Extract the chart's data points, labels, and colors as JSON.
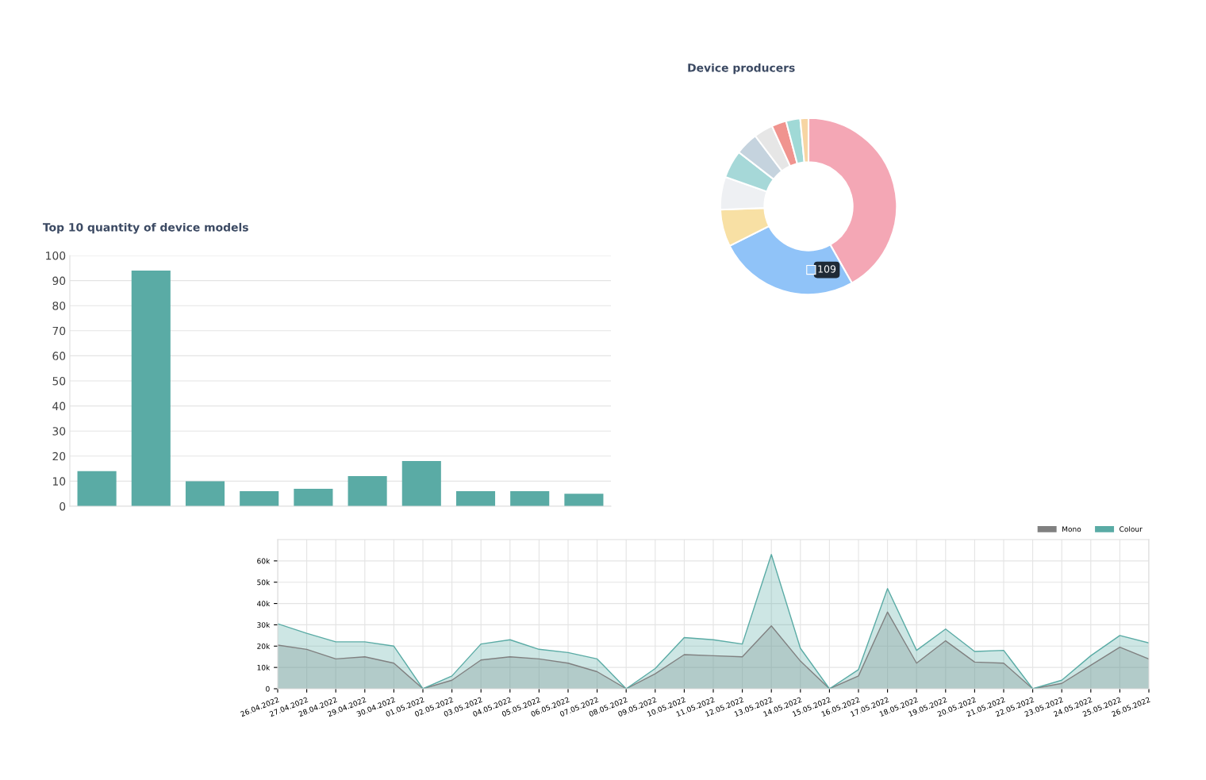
{
  "chart_data": [
    {
      "type": "donut",
      "title": "Device producers",
      "categories": [
        null,
        null,
        null,
        null,
        null,
        null,
        null,
        null,
        null,
        null
      ],
      "values": [
        41.8,
        25.8,
        6.8,
        6.0,
        5.1,
        4.2,
        3.5,
        2.7,
        2.6,
        1.5
      ],
      "colors": [
        "#f4a7b5",
        "#90c3f8",
        "#f8e0a4",
        "#eef0f3",
        "#a6d8d8",
        "#c5d3de",
        "#e6e6e6",
        "#f0948f",
        "#a0d9d6",
        "#f7d5a3"
      ],
      "annotations": [
        "109"
      ]
    },
    {
      "type": "bar",
      "title": "Top 10 quantity of device models",
      "categories": [
        null,
        null,
        null,
        null,
        null,
        null,
        null,
        null,
        null,
        null
      ],
      "values": [
        14,
        94,
        10,
        6,
        7,
        12,
        18,
        6,
        6,
        5
      ],
      "color": "#5aaba5",
      "ylim": [
        0,
        100
      ],
      "yticks": [
        0,
        10,
        20,
        30,
        40,
        50,
        60,
        70,
        80,
        90,
        100
      ],
      "grid": "y"
    },
    {
      "type": "area",
      "categories": [
        "26.04.2022",
        "27.04.2022",
        "28.04.2022",
        "29.04.2022",
        "30.04.2022",
        "01.05.2022",
        "02.05.2022",
        "03.05.2022",
        "04.05.2022",
        "05.05.2022",
        "06.05.2022",
        "07.05.2022",
        "08.05.2022",
        "09.05.2022",
        "10.05.2022",
        "11.05.2022",
        "12.05.2022",
        "13.05.2022",
        "14.05.2022",
        "15.05.2022",
        "16.05.2022",
        "17.05.2022",
        "18.05.2022",
        "19.05.2022",
        "20.05.2022",
        "21.05.2022",
        "22.05.2022",
        "23.05.2022",
        "24.05.2022",
        "25.05.2022",
        "26.05.2022"
      ],
      "series": [
        {
          "name": "Mono",
          "color": "#808080",
          "values": [
            20500,
            18500,
            14000,
            15000,
            12000,
            0,
            4000,
            13500,
            15000,
            14000,
            12000,
            8000,
            0,
            7000,
            16000,
            15500,
            15000,
            29500,
            13000,
            0,
            6000,
            36000,
            12000,
            22500,
            12500,
            12000,
            0,
            2500,
            11000,
            19500,
            14000
          ]
        },
        {
          "name": "Colour",
          "color": "#5aaba5",
          "values": [
            30500,
            26000,
            22000,
            22000,
            20000,
            0,
            6000,
            21000,
            23000,
            18500,
            17000,
            14000,
            0,
            9500,
            24000,
            23000,
            21000,
            63000,
            19000,
            0,
            9000,
            47000,
            18000,
            28000,
            17500,
            18000,
            0,
            4000,
            15500,
            25000,
            21500
          ]
        }
      ],
      "ylim": [
        0,
        70000
      ],
      "yticks": [
        0,
        {
          "value": 10000,
          "label": "10k"
        },
        {
          "value": 20000,
          "label": "20k"
        },
        {
          "value": 30000,
          "label": "30k"
        },
        {
          "value": 40000,
          "label": "40k"
        },
        {
          "value": 50000,
          "label": "50k"
        },
        {
          "value": 60000,
          "label": "60k"
        }
      ],
      "grid": true,
      "legend": "top right",
      "marker": "none"
    }
  ]
}
